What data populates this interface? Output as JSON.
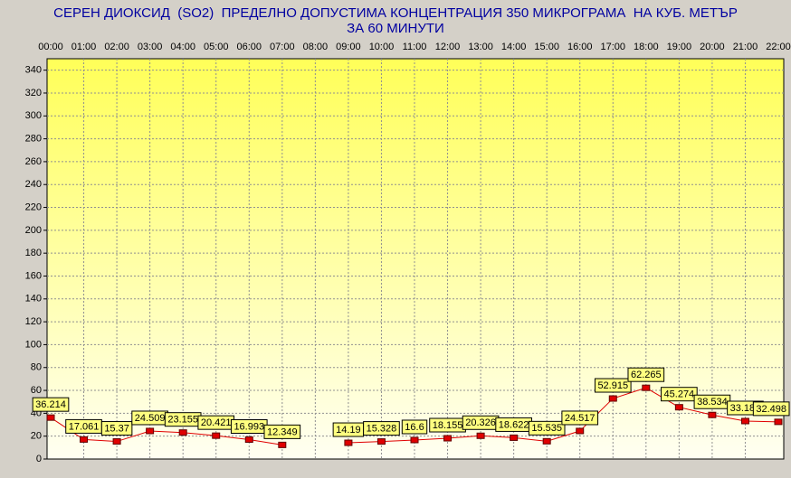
{
  "chart_data": {
    "type": "line",
    "title": "СЕРЕН ДИОКСИД  (SO2)  ПРЕДЕЛНО ДОПУСТИМА КОНЦЕНТРАЦИЯ 350 МИКРОГРАМА  НА КУБ. МЕТЪР",
    "subtitle": "ЗА 60 МИНУТИ",
    "categories": [
      "00:00",
      "01:00",
      "02:00",
      "03:00",
      "04:00",
      "05:00",
      "06:00",
      "07:00",
      "08:00",
      "09:00",
      "10:00",
      "11:00",
      "12:00",
      "13:00",
      "14:00",
      "15:00",
      "16:00",
      "17:00",
      "18:00",
      "19:00",
      "20:00",
      "21:00",
      "22:00"
    ],
    "values": [
      36.214,
      17.061,
      15.37,
      24.509,
      23.155,
      20.421,
      16.993,
      12.349,
      null,
      14.19,
      15.328,
      16.6,
      18.155,
      20.326,
      18.622,
      15.535,
      24.517,
      52.915,
      62.265,
      45.274,
      38.534,
      33.188,
      32.498
    ],
    "color": "#e00000",
    "ylim": [
      0,
      350
    ],
    "yticks": [
      0,
      20,
      40,
      60,
      80,
      100,
      120,
      140,
      160,
      180,
      200,
      220,
      240,
      260,
      280,
      300,
      320,
      340
    ],
    "grid": true
  }
}
